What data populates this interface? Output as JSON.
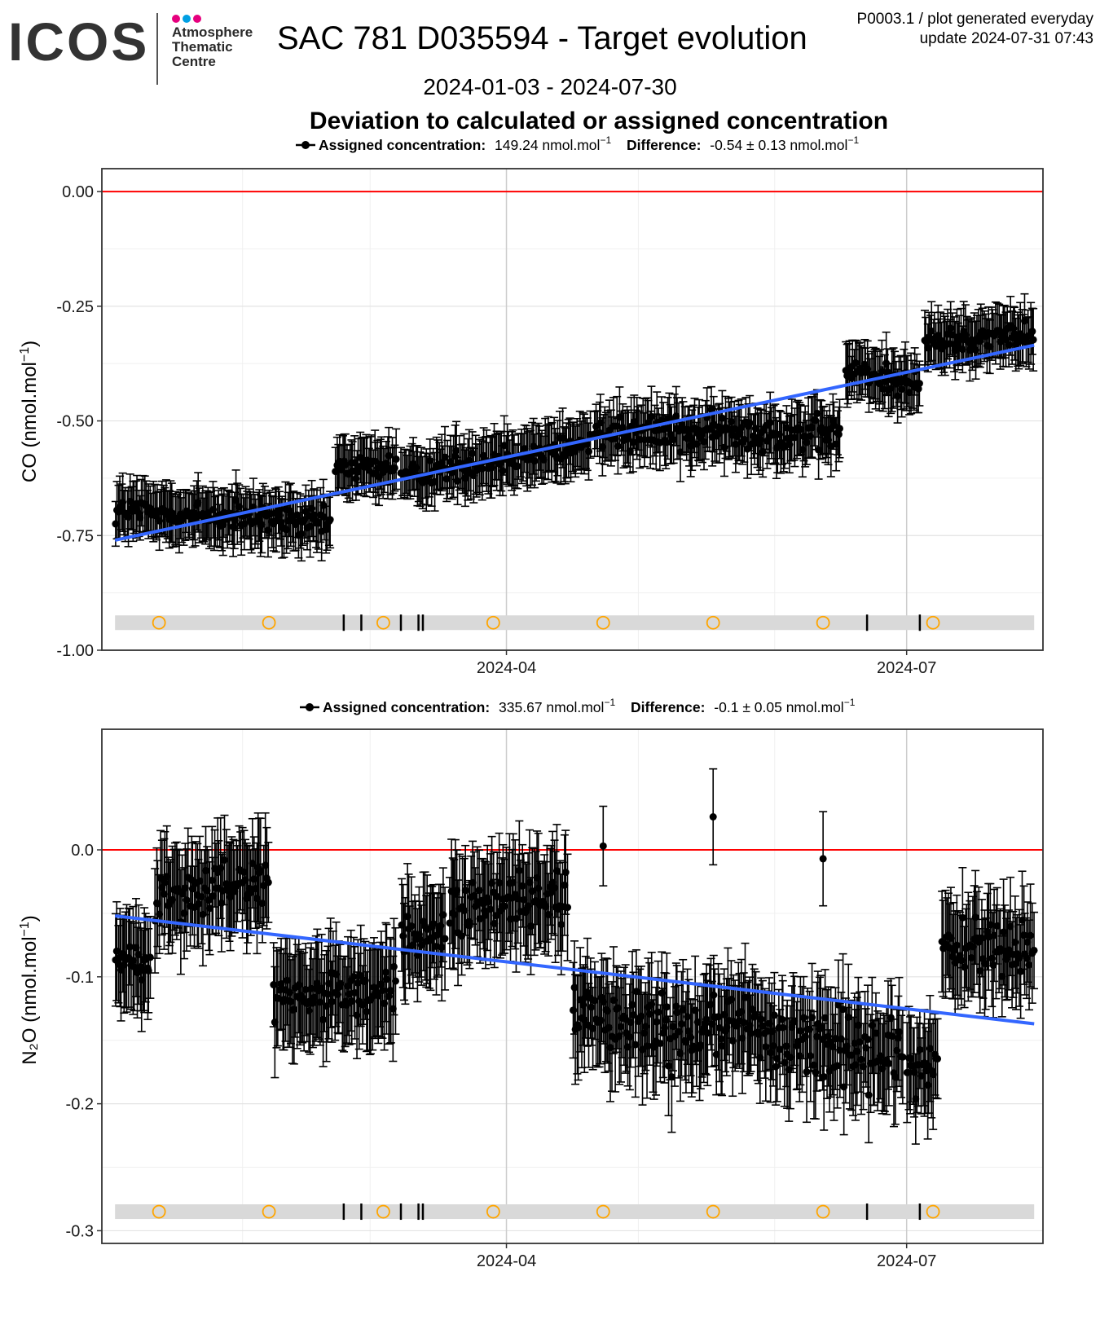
{
  "header": {
    "logo_text": "ICOS",
    "logo_sub": [
      "Atmosphere",
      "Thematic",
      "Centre"
    ],
    "logo_dot_colors": [
      "#e6007e",
      "#009fe3",
      "#e6007e"
    ],
    "title": "SAC 781 D035594 - Target evolution",
    "meta_line1": "P0003.1 / plot generated everyday",
    "meta_line2": "update  2024-07-31 07:43",
    "subtitle": "2024-01-03 - 2024-07-30",
    "heading": "Deviation to calculated or assigned concentration"
  },
  "chart_data": [
    {
      "type": "scatter",
      "legend": {
        "label1": "Assigned concentration:",
        "value1": "149.24 nmol.mol",
        "label2": "Difference:",
        "value2": "-0.54 ± 0.13 nmol.mol",
        "unit_exp": "−1"
      },
      "ylabel_main": "CO (nmol.mol",
      "ylabel_sup": "−1",
      "ylabel_tail": ")",
      "ylim": [
        -1.0,
        0.05
      ],
      "yticks": [
        0.0,
        -0.25,
        -0.5,
        -0.75,
        -1.0
      ],
      "ytick_labels": [
        "0.00",
        "-0.25",
        "-0.50",
        "-0.75",
        "-1.00"
      ],
      "xlim": [
        "2023-12-31",
        "2024-08-01"
      ],
      "xticks": [
        "2024-04-01",
        "2024-07-01"
      ],
      "xtick_labels": [
        "2024-04",
        "2024-07"
      ],
      "reference_line": 0.0,
      "trend": {
        "start": [
          "2024-01-03",
          -0.76
        ],
        "end": [
          "2024-07-30",
          -0.335
        ]
      },
      "segments": [
        {
          "from": "2024-01-03",
          "to": "2024-02-21",
          "start": -0.695,
          "end": -0.725,
          "spread": 0.03
        },
        {
          "from": "2024-02-22",
          "to": "2024-03-07",
          "start": -0.6,
          "end": -0.6,
          "spread": 0.025
        },
        {
          "from": "2024-03-08",
          "to": "2024-04-20",
          "start": -0.62,
          "end": -0.55,
          "spread": 0.028
        },
        {
          "from": "2024-04-21",
          "to": "2024-06-16",
          "start": -0.52,
          "end": -0.53,
          "spread": 0.035
        },
        {
          "from": "2024-06-17",
          "to": "2024-07-04",
          "start": -0.39,
          "end": -0.42,
          "spread": 0.028
        },
        {
          "from": "2024-07-05",
          "to": "2024-07-30",
          "start": -0.33,
          "end": -0.31,
          "spread": 0.025
        }
      ],
      "error_half_width": 0.055,
      "timeline_y": -0.94,
      "calibration_marks": [
        "2024-01-13",
        "2024-02-07",
        "2024-03-04",
        "2024-03-29",
        "2024-04-23",
        "2024-05-18",
        "2024-06-12",
        "2024-07-07"
      ],
      "event_marks": [
        "2024-02-24",
        "2024-02-28",
        "2024-03-08",
        "2024-03-12",
        "2024-03-13",
        "2024-06-22",
        "2024-07-04"
      ],
      "colors": {
        "points": "#000000",
        "trend": "#3366ff",
        "reference": "#ff0000",
        "calibration": "#ffa500",
        "timeline": "#d9d9d9"
      }
    },
    {
      "type": "scatter",
      "legend": {
        "label1": "Assigned concentration:",
        "value1": "335.67 nmol.mol",
        "label2": "Difference:",
        "value2": "-0.1 ± 0.05 nmol.mol",
        "unit_exp": "−1"
      },
      "ylabel_main": "N₂O (nmol.mol",
      "ylabel_sup": "−1",
      "ylabel_tail": ")",
      "ylim": [
        -0.31,
        0.095
      ],
      "yticks": [
        0.0,
        -0.1,
        -0.2,
        -0.3
      ],
      "ytick_labels": [
        "0.0",
        "-0.1",
        "-0.2",
        "-0.3"
      ],
      "xlim": [
        "2023-12-31",
        "2024-08-01"
      ],
      "xticks": [
        "2024-04-01",
        "2024-07-01"
      ],
      "xtick_labels": [
        "2024-04",
        "2024-07"
      ],
      "reference_line": 0.0,
      "trend": {
        "start": [
          "2024-01-03",
          -0.052
        ],
        "end": [
          "2024-07-30",
          -0.137
        ]
      },
      "segments": [
        {
          "from": "2024-01-03",
          "to": "2024-01-11",
          "start": -0.085,
          "end": -0.095,
          "spread": 0.012
        },
        {
          "from": "2024-01-12",
          "to": "2024-02-07",
          "start": -0.035,
          "end": -0.025,
          "spread": 0.018
        },
        {
          "from": "2024-02-08",
          "to": "2024-03-07",
          "start": -0.12,
          "end": -0.11,
          "spread": 0.018
        },
        {
          "from": "2024-03-08",
          "to": "2024-03-18",
          "start": -0.07,
          "end": -0.065,
          "spread": 0.015
        },
        {
          "from": "2024-03-19",
          "to": "2024-04-15",
          "start": -0.05,
          "end": -0.03,
          "spread": 0.022
        },
        {
          "from": "2024-04-16",
          "to": "2024-06-30",
          "start": -0.13,
          "end": -0.16,
          "spread": 0.028
        },
        {
          "from": "2024-07-01",
          "to": "2024-07-08",
          "start": -0.17,
          "end": -0.175,
          "spread": 0.02
        },
        {
          "from": "2024-07-09",
          "to": "2024-07-30",
          "start": -0.075,
          "end": -0.08,
          "spread": 0.02
        }
      ],
      "outliers": [
        [
          "2024-04-23",
          0.003
        ],
        [
          "2024-05-18",
          0.026
        ],
        [
          "2024-06-12",
          -0.007
        ]
      ],
      "error_half_width": 0.035,
      "timeline_y": -0.285,
      "calibration_marks": [
        "2024-01-13",
        "2024-02-07",
        "2024-03-04",
        "2024-03-29",
        "2024-04-23",
        "2024-05-18",
        "2024-06-12",
        "2024-07-07"
      ],
      "event_marks": [
        "2024-02-24",
        "2024-02-28",
        "2024-03-08",
        "2024-03-12",
        "2024-03-13",
        "2024-06-22",
        "2024-07-04"
      ],
      "colors": {
        "points": "#000000",
        "trend": "#3366ff",
        "reference": "#ff0000",
        "calibration": "#ffa500",
        "timeline": "#d9d9d9"
      }
    }
  ]
}
